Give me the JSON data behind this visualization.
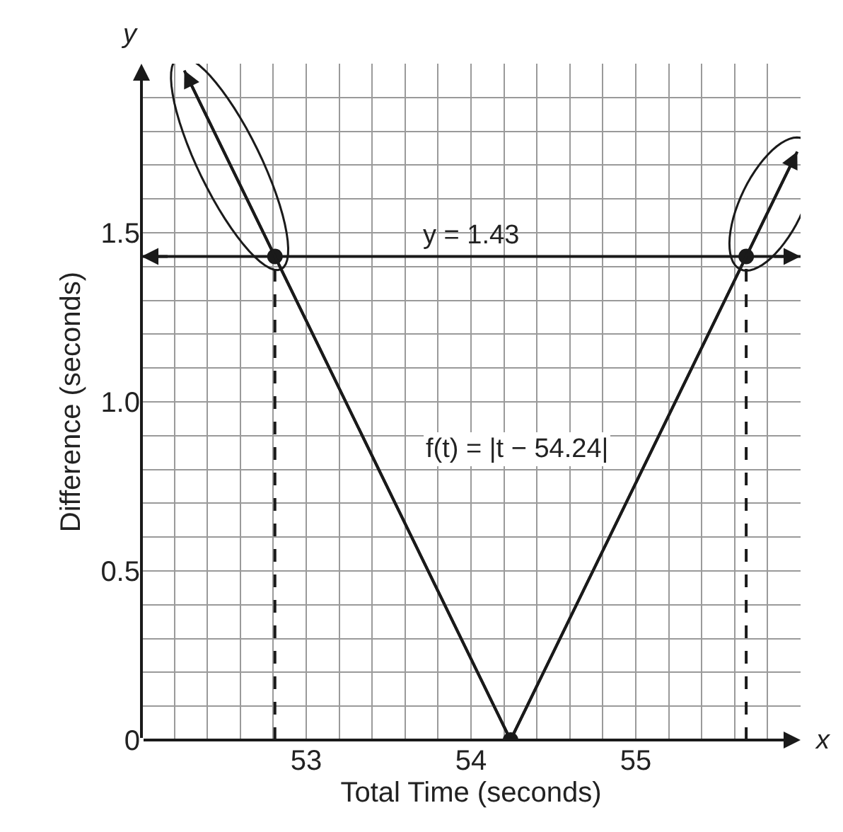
{
  "chart_data": {
    "type": "line",
    "xlabel": "Total Time (seconds)",
    "ylabel": "Difference (seconds)",
    "xlim": [
      52,
      56
    ],
    "ylim": [
      0,
      2
    ],
    "xticks": [
      {
        "value": 52.2,
        "label": null
      },
      {
        "value": 52.4,
        "label": null
      },
      {
        "value": 52.6,
        "label": null
      },
      {
        "value": 52.8,
        "label": null
      },
      53,
      {
        "value": 53.2,
        "label": null
      },
      {
        "value": 53.4,
        "label": null
      },
      {
        "value": 53.6,
        "label": null
      },
      {
        "value": 53.8,
        "label": null
      },
      54,
      {
        "value": 54.2,
        "label": null
      },
      {
        "value": 54.4,
        "label": null
      },
      {
        "value": 54.6,
        "label": null
      },
      {
        "value": 54.8,
        "label": null
      },
      55,
      {
        "value": 55.2,
        "label": null
      },
      {
        "value": 55.4,
        "label": null
      },
      {
        "value": 55.6,
        "label": null
      },
      {
        "value": 55.8,
        "label": null
      }
    ],
    "yticks": [
      0,
      {
        "value": 0.1,
        "label": null
      },
      {
        "value": 0.2,
        "label": null
      },
      {
        "value": 0.3,
        "label": null
      },
      {
        "value": 0.4,
        "label": null
      },
      0.5,
      {
        "value": 0.6,
        "label": null
      },
      {
        "value": 0.7,
        "label": null
      },
      {
        "value": 0.8,
        "label": null
      },
      {
        "value": 0.9,
        "label": null
      },
      {
        "value": 1.0,
        "label": "1.0"
      },
      {
        "value": 1.1,
        "label": null
      },
      {
        "value": 1.2,
        "label": null
      },
      {
        "value": 1.3,
        "label": null
      },
      {
        "value": 1.4,
        "label": null
      },
      1.5,
      {
        "value": 1.6,
        "label": null
      },
      {
        "value": 1.7,
        "label": null
      },
      {
        "value": 1.8,
        "label": null
      },
      {
        "value": 1.9,
        "label": null
      }
    ],
    "grid": true,
    "series": [
      {
        "color": "#1a1a1a",
        "x": [
          52.26,
          54.24,
          55.98
        ],
        "values": [
          1.98,
          0,
          1.74
        ],
        "marker": "none",
        "line_style": "solid"
      },
      {
        "type": "line",
        "color": "#1a1a1a",
        "x": [
          52.81,
          52.81
        ],
        "values": [
          0,
          1.43
        ],
        "marker": "none",
        "line_style": "dashed"
      },
      {
        "type": "line",
        "color": "#1a1a1a",
        "x": [
          55.67,
          55.67
        ],
        "values": [
          0,
          1.43
        ],
        "marker": "none",
        "line_style": "dashed"
      },
      {
        "type": "scatter",
        "color": "#1a1a1a",
        "x": [
          52.81,
          54.24,
          55.67
        ],
        "values": [
          1.43,
          0,
          1.43
        ],
        "marker": "circle"
      }
    ],
    "ref_lines": [
      {
        "axis": "y",
        "value": 1.43,
        "label": "y = 1.43",
        "color": "#1a1a1a",
        "line_style": "solid"
      }
    ],
    "annotations": [
      "f(t) = |t − 54.24|",
      "y",
      "x"
    ]
  }
}
